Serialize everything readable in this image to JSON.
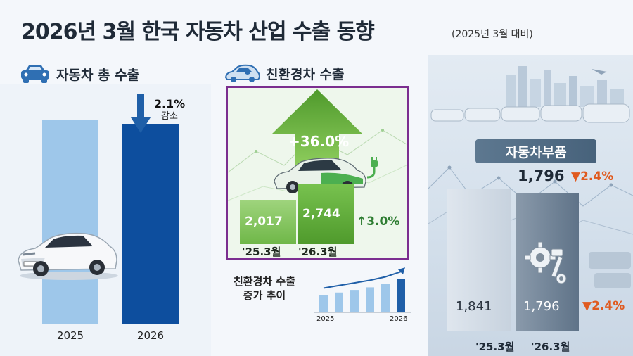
{
  "header": {
    "title": "2026년 3월 한국 자동차 산업 수출 동향",
    "subtitle": "(2025년 3월 대비)"
  },
  "colors": {
    "bar_light": "#9ec7ea",
    "bar_dark": "#0d4e9e",
    "eco_green": "#5cae3a",
    "accent_red": "#e05a1f",
    "border_purple": "#7b2e8f"
  },
  "chart_data": [
    {
      "type": "bar",
      "title": "자동차 총 수출",
      "categories": [
        "2025",
        "2026"
      ],
      "values": [
        100,
        97.9
      ],
      "ylim": [
        0,
        100
      ],
      "annotation": {
        "value": "2.1%",
        "label": "감소"
      },
      "icon": "car-icon"
    },
    {
      "type": "bar",
      "title": "친환경차 수출",
      "categories": [
        "'25.3월",
        "'26.3월"
      ],
      "values": [
        2017,
        2744
      ],
      "value_labels": [
        "2,017",
        "2,744"
      ],
      "ylim": [
        0,
        2800
      ],
      "growth_label": "+36.0%",
      "side_label": "3.0%",
      "icon": "eco-car-icon"
    },
    {
      "type": "bar",
      "title": "친환경차 수출 증가 추이",
      "title_lines": [
        "친환경차 수출",
        "증가 추이"
      ],
      "x_start": "2025",
      "x_end": "2026",
      "values": [
        1.0,
        1.15,
        1.3,
        1.45,
        1.65,
        1.95
      ],
      "ylim": [
        0,
        2.2
      ]
    },
    {
      "type": "bar",
      "title": "자동차부품",
      "categories": [
        "'25.3월",
        "'26.3월"
      ],
      "values": [
        1841,
        1796
      ],
      "value_labels": [
        "1,841",
        "1,796"
      ],
      "ylim": [
        0,
        2000
      ],
      "headline_value": "1,796",
      "change_label": "2.4%",
      "icon": "gear-icon"
    }
  ]
}
